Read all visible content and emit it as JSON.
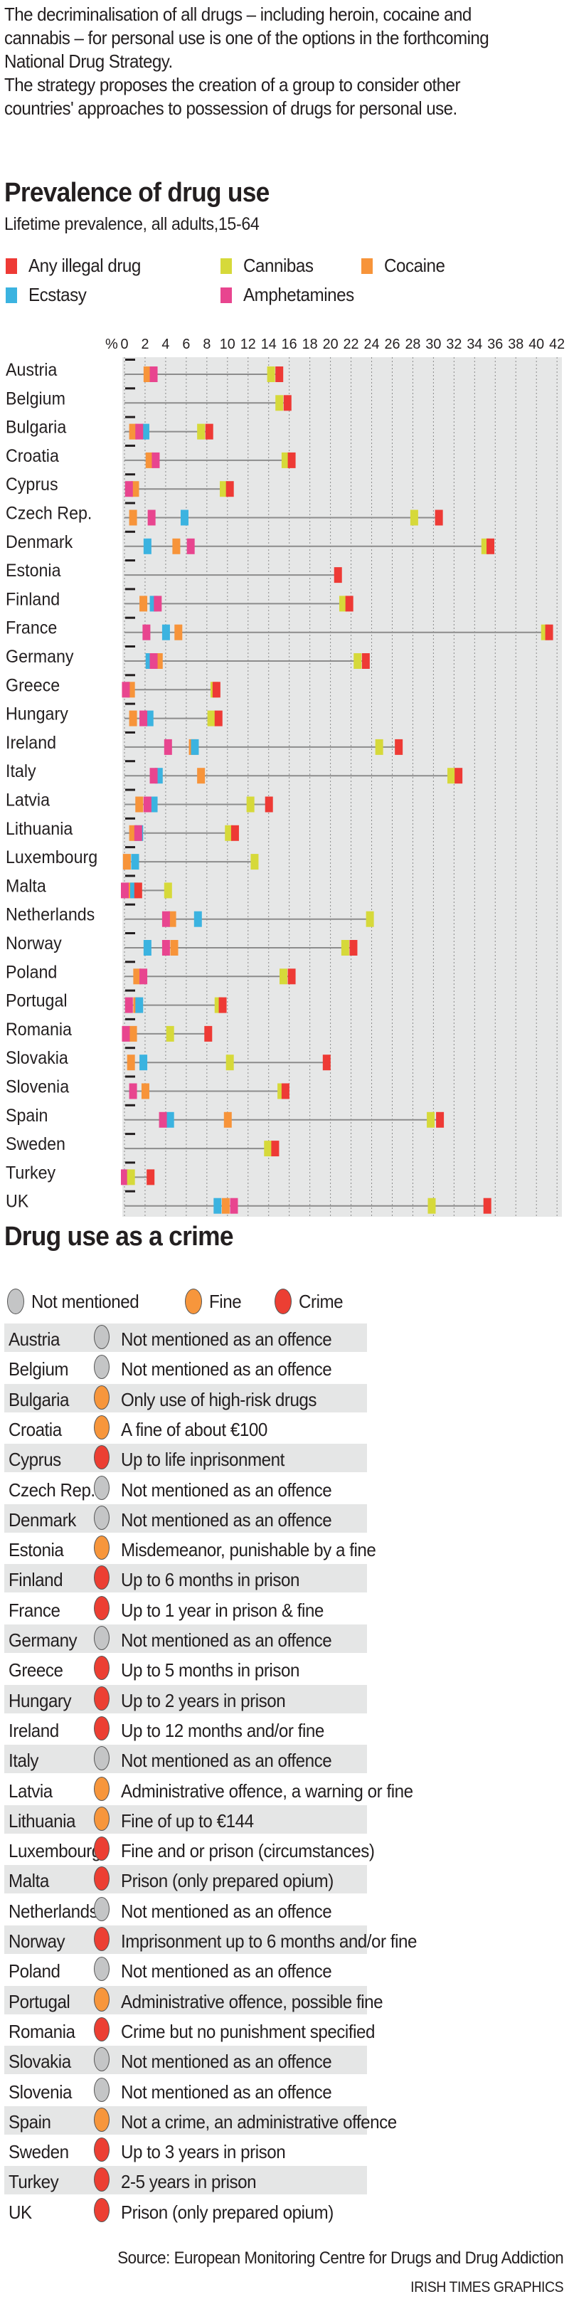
{
  "intro": {
    "paragraph1": "The decriminalisation of all drugs – including heroin, cocaine and cannabis – for personal use is one of the options in the forthcoming National Drug Strategy.",
    "paragraph2": "The strategy proposes the creation of a group to consider other countries' approaches to  possession of drugs for personal use."
  },
  "colors": {
    "any": "#ee3a35",
    "cannabis": "#d6d93a",
    "cocaine": "#f7943a",
    "ecstasy": "#3bb3e0",
    "amphetamines": "#e8458f",
    "not_mentioned": "#c4c5c6",
    "fine": "#f7963c",
    "crime": "#ec3f33",
    "plot_bg": "#e6e7e7",
    "row_shade": "#e5e6e6"
  },
  "chart_data": {
    "type": "dot-range",
    "title": "Prevalence of drug use",
    "subtitle": "Lifetime prevalence, all adults,15-64",
    "xlabel": "%",
    "xlim": [
      0,
      42
    ],
    "xticks": [
      "0",
      "2",
      "4",
      "6",
      "8",
      "10",
      "12",
      "14",
      "16",
      "18",
      "20",
      "22",
      "24",
      "26",
      "28",
      "30",
      "32",
      "34",
      "36",
      "38",
      "40",
      "42"
    ],
    "grid": true,
    "legend": [
      {
        "key": "any",
        "label": "Any illegal drug"
      },
      {
        "key": "cannabis",
        "label": "Cannibas"
      },
      {
        "key": "cocaine",
        "label": "Cocaine"
      },
      {
        "key": "ecstasy",
        "label": "Ecstasy"
      },
      {
        "key": "amphetamines",
        "label": "Amphetamines"
      }
    ],
    "legend_position": "top-left",
    "categories": [
      "Austria",
      "Belgium",
      "Bulgaria",
      "Croatia",
      "Cyprus",
      "Czech Rep.",
      "Denmark",
      "Estonia",
      "Finland",
      "France",
      "Germany",
      "Greece",
      "Hungary",
      "Ireland",
      "Italy",
      "Latvia",
      "Lithuania",
      "Luxembourg",
      "Malta",
      "Netherlands",
      "Norway",
      "Poland",
      "Portugal",
      "Romania",
      "Slovakia",
      "Slovenia",
      "Spain",
      "Sweden",
      "Turkey",
      "UK"
    ],
    "series": [
      {
        "key": "cocaine",
        "name": "Cocaine",
        "values": [
          2.2,
          null,
          0.8,
          2.4,
          1.0,
          0.8,
          5.0,
          null,
          1.8,
          5.2,
          3.3,
          0.6,
          0.8,
          6.6,
          7.4,
          1.4,
          0.8,
          0.2,
          0.6,
          4.6,
          4.8,
          1.2,
          1.2,
          0.8,
          0.6,
          2.0,
          10.0,
          null,
          null,
          9.8
        ]
      },
      {
        "key": "ecstasy",
        "name": "Ecstasy",
        "values": [
          null,
          null,
          2.0,
          null,
          null,
          5.8,
          2.2,
          null,
          2.8,
          4.0,
          2.4,
          null,
          2.4,
          6.8,
          3.3,
          2.8,
          1.4,
          1.0,
          0.9,
          7.1,
          2.2,
          null,
          1.4,
          null,
          1.8,
          null,
          4.4,
          null,
          null,
          9.0
        ]
      },
      {
        "key": "amphetamines",
        "name": "Amphetamines",
        "values": [
          2.8,
          null,
          1.4,
          3.0,
          0.4,
          2.6,
          6.4,
          null,
          3.2,
          2.1,
          2.8,
          0.1,
          1.8,
          4.2,
          2.8,
          2.2,
          1.3,
          null,
          0.0,
          4.0,
          4.0,
          1.8,
          0.4,
          0.1,
          null,
          0.8,
          3.7,
          null,
          0.0,
          10.6
        ]
      },
      {
        "key": "cannabis",
        "name": "Cannibas",
        "values": [
          14.2,
          15.0,
          7.4,
          15.6,
          9.6,
          28.1,
          35.0,
          null,
          21.2,
          40.8,
          22.6,
          8.7,
          8.4,
          24.7,
          31.7,
          12.2,
          10.1,
          12.6,
          4.2,
          23.8,
          21.4,
          15.4,
          9.1,
          4.4,
          10.2,
          15.2,
          29.7,
          13.9,
          0.6,
          29.8
        ]
      },
      {
        "key": "any",
        "name": "Any illegal drug",
        "values": [
          15.0,
          15.8,
          8.2,
          16.2,
          10.2,
          30.5,
          35.5,
          20.7,
          21.8,
          41.2,
          23.4,
          8.9,
          9.1,
          26.6,
          32.4,
          14.0,
          10.7,
          null,
          1.3,
          null,
          22.2,
          16.2,
          9.5,
          8.1,
          19.6,
          15.6,
          30.6,
          14.6,
          2.5,
          35.2
        ]
      }
    ]
  },
  "crime": {
    "title": "Drug use as a crime",
    "legend": [
      {
        "key": "not_mentioned",
        "label": "Not mentioned"
      },
      {
        "key": "fine",
        "label": "Fine"
      },
      {
        "key": "crime",
        "label": "Crime"
      }
    ],
    "rows": [
      {
        "country": "Austria",
        "status": "not_mentioned",
        "text": "Not mentioned as an offence"
      },
      {
        "country": "Belgium",
        "status": "not_mentioned",
        "text": "Not mentioned as an offence"
      },
      {
        "country": "Bulgaria",
        "status": "fine",
        "text": "Only use of high-risk drugs"
      },
      {
        "country": "Croatia",
        "status": "fine",
        "text": "A fine of about €100"
      },
      {
        "country": "Cyprus",
        "status": "crime",
        "text": "Up to life inprisonment"
      },
      {
        "country": "Czech Rep.",
        "status": "not_mentioned",
        "text": "Not mentioned as an offence"
      },
      {
        "country": "Denmark",
        "status": "not_mentioned",
        "text": "Not mentioned as an offence"
      },
      {
        "country": "Estonia",
        "status": "fine",
        "text": "Misdemeanor, punishable by a fine"
      },
      {
        "country": "Finland",
        "status": "crime",
        "text": "Up to 6 months in prison"
      },
      {
        "country": "France",
        "status": "crime",
        "text": "Up to 1 year in prison & fine"
      },
      {
        "country": "Germany",
        "status": "not_mentioned",
        "text": "Not mentioned as an offence"
      },
      {
        "country": "Greece",
        "status": "crime",
        "text": "Up to 5 months in prison"
      },
      {
        "country": "Hungary",
        "status": "crime",
        "text": "Up to 2 years in prison"
      },
      {
        "country": "Ireland",
        "status": "crime",
        "text": "Up to 12 months and/or fine"
      },
      {
        "country": "Italy",
        "status": "not_mentioned",
        "text": "Not mentioned as an offence"
      },
      {
        "country": "Latvia",
        "status": "fine",
        "text": "Administrative offence, a warning or  fine"
      },
      {
        "country": "Lithuania",
        "status": "fine",
        "text": "Fine of up to €144"
      },
      {
        "country": "Luxembourg",
        "status": "crime",
        "text": "Fine and or prison (circumstances)"
      },
      {
        "country": "Malta",
        "status": "crime",
        "text": "Prison (only prepared opium)"
      },
      {
        "country": "Netherlands",
        "status": "not_mentioned",
        "text": "Not mentioned as an offence"
      },
      {
        "country": "Norway",
        "status": "crime",
        "text": "Imprisonment up to 6 months and/or fine"
      },
      {
        "country": "Poland",
        "status": "not_mentioned",
        "text": "Not mentioned as an offence"
      },
      {
        "country": "Portugal",
        "status": "fine",
        "text": "Administrative offence, possible  fine"
      },
      {
        "country": "Romania",
        "status": "crime",
        "text": "Crime but no punishment specified"
      },
      {
        "country": "Slovakia",
        "status": "not_mentioned",
        "text": "Not mentioned as an offence"
      },
      {
        "country": "Slovenia",
        "status": "not_mentioned",
        "text": "Not mentioned as an offence"
      },
      {
        "country": "Spain",
        "status": "fine",
        "text": "Not a crime, an administrative offence"
      },
      {
        "country": "Sweden",
        "status": "crime",
        "text": "Up to 3 years in prison"
      },
      {
        "country": "Turkey",
        "status": "crime",
        "text": "2-5 years in prison"
      },
      {
        "country": "UK",
        "status": "crime",
        "text": "Prison (only prepared opium)"
      }
    ]
  },
  "footer": {
    "source": "Source: European Monitoring Centre for Drugs and Drug Addiction",
    "credit": "IRISH TIMES GRAPHICS"
  }
}
